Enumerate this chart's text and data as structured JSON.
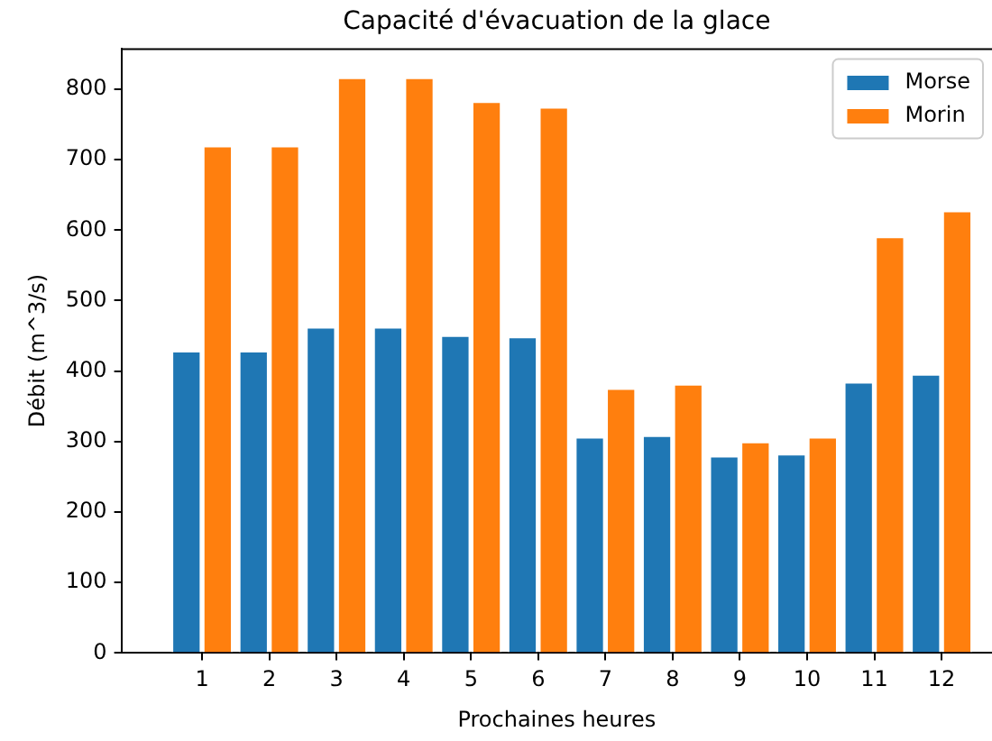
{
  "chart_data": {
    "type": "bar",
    "title": "Capacité d'évacuation de la glace",
    "xlabel": "Prochaines heures",
    "ylabel": "Débit (m^3/s)",
    "x": [
      1,
      2,
      3,
      4,
      5,
      6,
      7,
      8,
      9,
      10,
      11,
      12
    ],
    "xlim": [
      -0.2,
      12.75
    ],
    "xticks": [
      1,
      2,
      3,
      4,
      5,
      6,
      7,
      8,
      9,
      10,
      11,
      12
    ],
    "ylim": [
      0,
      858
    ],
    "yticks": [
      0,
      100,
      200,
      300,
      400,
      500,
      600,
      700,
      800
    ],
    "grid": false,
    "legend": "top right",
    "series": [
      {
        "name": "Morse",
        "color": "#1f77b4",
        "values": [
          429,
          429,
          463,
          463,
          451,
          449,
          307,
          309,
          280,
          283,
          385,
          396
        ]
      },
      {
        "name": "Morin",
        "color": "#ff7f0e",
        "values": [
          720,
          720,
          817,
          817,
          783,
          775,
          376,
          382,
          300,
          307,
          591,
          628
        ]
      }
    ]
  }
}
